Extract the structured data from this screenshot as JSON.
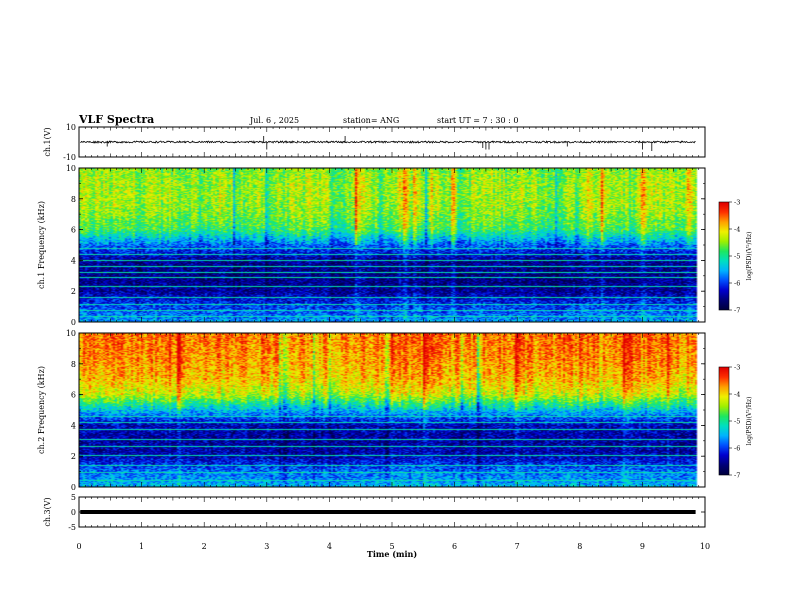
{
  "header": {
    "title": "VLF Spectra",
    "date": "Jul. 6 , 2025",
    "station": "station= ANG",
    "start": "start UT = 7 : 30 : 0"
  },
  "colors": {
    "ramp": [
      "#000040",
      "#00007a",
      "#0000d0",
      "#0050ff",
      "#00b4ff",
      "#00e0c0",
      "#20e860",
      "#a0f000",
      "#f0f000",
      "#ffa000",
      "#ff3000",
      "#e00000"
    ]
  },
  "chart_data": [
    {
      "type": "line",
      "panel": "ch1-waveform",
      "ylabel": "ch.1(V)",
      "ylim": [
        -10,
        10
      ],
      "yticks": [
        "10",
        "-10"
      ],
      "baseline": 0,
      "noise_amplitude": 1.2,
      "spikes": [
        {
          "t": 0.45,
          "v": -3
        },
        {
          "t": 2.95,
          "v": 4
        },
        {
          "t": 3.0,
          "v": -5
        },
        {
          "t": 4.25,
          "v": 4
        },
        {
          "t": 6.45,
          "v": -4
        },
        {
          "t": 6.5,
          "v": -5
        },
        {
          "t": 6.55,
          "v": -5
        },
        {
          "t": 7.8,
          "v": -3
        },
        {
          "t": 9.0,
          "v": -5
        },
        {
          "t": 9.15,
          "v": -6
        }
      ]
    },
    {
      "type": "heatmap",
      "panel": "ch1-spectrogram",
      "ylabel": "ch.1 Frequency (kHz)",
      "ylim": [
        0,
        10
      ],
      "yticks": [
        "0",
        "2",
        "4",
        "6",
        "8",
        "10"
      ],
      "colorbar": {
        "label": "log(PSD)(V²/Hz)",
        "range": [
          -7,
          -3
        ],
        "ticks": [
          "-3",
          "-4",
          "-5",
          "-6",
          "-7"
        ]
      },
      "intensity_profile": {
        "freq_khz": [
          0,
          1,
          2,
          3,
          4,
          5,
          6,
          7,
          8,
          9,
          10
        ],
        "level": [
          0.35,
          0.25,
          0.12,
          0.1,
          0.12,
          0.3,
          0.55,
          0.62,
          0.65,
          0.65,
          0.62
        ]
      },
      "tone_lines_khz": [
        0.3,
        0.7,
        1.1,
        1.6,
        2.3,
        2.9,
        3.2,
        3.6,
        4.0,
        4.4,
        4.8
      ]
    },
    {
      "type": "heatmap",
      "panel": "ch2-spectrogram",
      "ylabel": "ch.2 Frequency (kHz)",
      "ylim": [
        0,
        10
      ],
      "yticks": [
        "0",
        "2",
        "4",
        "6",
        "8",
        "10"
      ],
      "colorbar": {
        "label": "log(PSD)(V²/Hz)",
        "range": [
          -7,
          -3
        ],
        "ticks": [
          "-3",
          "-4",
          "-5",
          "-6",
          "-7"
        ]
      },
      "intensity_profile": {
        "freq_khz": [
          0,
          1,
          2,
          3,
          4,
          5,
          6,
          7,
          8,
          9,
          10
        ],
        "level": [
          0.38,
          0.3,
          0.15,
          0.13,
          0.16,
          0.4,
          0.68,
          0.78,
          0.82,
          0.85,
          0.86
        ]
      },
      "tone_lines_khz": [
        0.4,
        0.9,
        1.4,
        2.0,
        2.6,
        3.1,
        3.7,
        4.2,
        4.6
      ]
    },
    {
      "type": "line",
      "panel": "ch3-waveform",
      "ylabel": "ch.3(V)",
      "ylim": [
        -5,
        5
      ],
      "yticks": [
        "5",
        "0",
        "-5"
      ],
      "baseline": 0,
      "noise_amplitude": 0
    }
  ],
  "xaxis": {
    "label": "Time (min)",
    "xlim": [
      0,
      10
    ],
    "ticks": [
      "0",
      "1",
      "2",
      "3",
      "4",
      "5",
      "6",
      "7",
      "8",
      "9",
      "10"
    ]
  },
  "data_end_min": 9.85
}
